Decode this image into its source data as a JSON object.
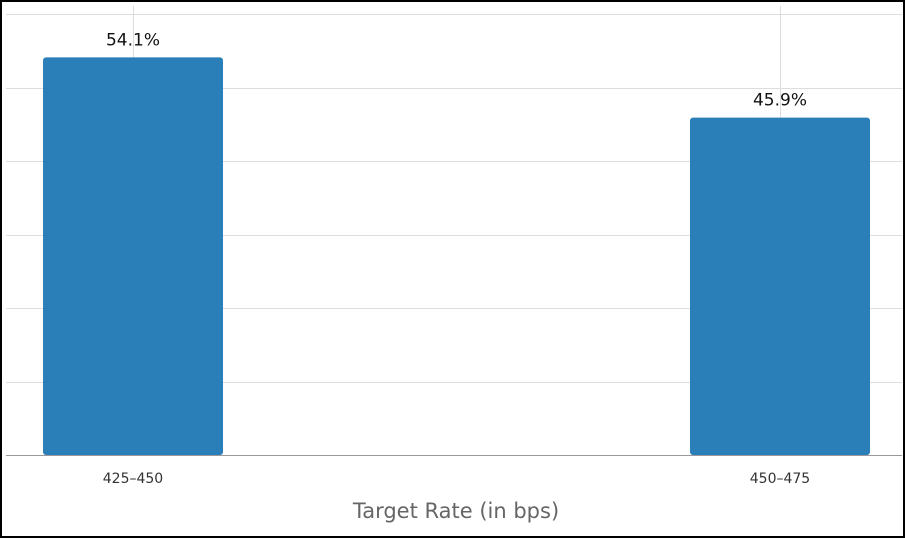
{
  "chart_data": {
    "type": "bar",
    "title": "",
    "xlabel": "Target Rate (in bps)",
    "ylabel": "",
    "categories": [
      "425–450",
      "450–475"
    ],
    "values": [
      54.1,
      45.9
    ],
    "value_labels": [
      "54.1%",
      "45.9%"
    ],
    "ylim": [
      0,
      60
    ],
    "grid": true,
    "bar_color": "#2a7fb8",
    "legend": "none"
  }
}
